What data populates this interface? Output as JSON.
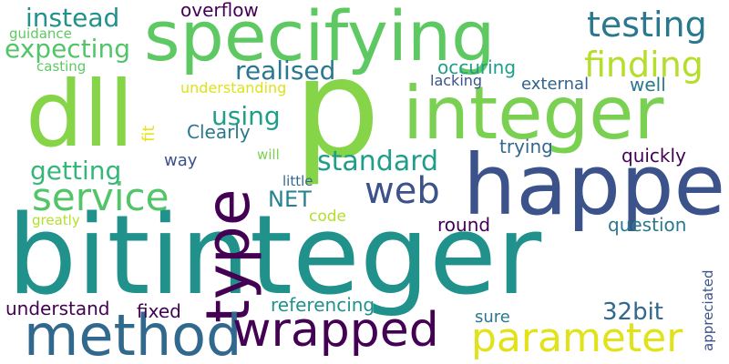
{
  "words": {
    "bitinteger": "bitinteger",
    "specifying": "specifying",
    "p": "p",
    "integer": "integer",
    "happen": "happen",
    "dll": "dll",
    "type": "type",
    "method": "method",
    "wrapped": "wrapped",
    "parameter": "parameter",
    "service": "service",
    "web": "web",
    "testing": "testing",
    "finding": "finding",
    "expecting": "expecting",
    "instead": "instead",
    "getting": "getting",
    "standard": "standard",
    "realised": "realised",
    "using": "using",
    "overflow": "overflow",
    "NET": "NET",
    "32bit": "32bit",
    "occuring": "occuring",
    "external": "external",
    "well": "well",
    "lacking": "lacking",
    "understanding": "understanding",
    "guidance": "guidance",
    "casting": "casting",
    "fit": "fit",
    "Clearly": "Clearly",
    "will": "will",
    "way": "way",
    "trying": "trying",
    "quickly": "quickly",
    "little": "little",
    "code": "code",
    "round": "round",
    "question": "question",
    "greatly": "greatly",
    "understand": "understand",
    "fixed": "fixed",
    "referencing": "referencing",
    "sure": "sure",
    "appreciated": "appreciated"
  },
  "palette": {
    "purple": "#440154",
    "indigo": "#3b528b",
    "blue": "#31688e",
    "teal": "#21918c",
    "sea": "#1f9e89",
    "green": "#35b779",
    "lime": "#6ece58",
    "yellowgreen": "#b5de2b",
    "yellow": "#fde725"
  }
}
